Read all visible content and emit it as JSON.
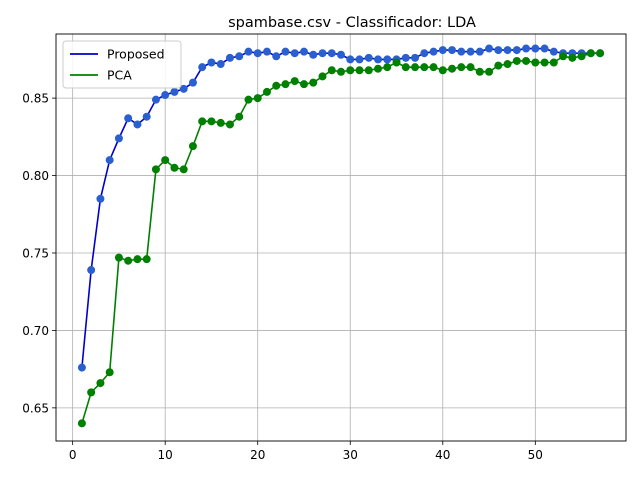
{
  "chart_data": {
    "type": "line",
    "title": "spambase.csv - Classificador: LDA",
    "xlabel": "",
    "ylabel": "",
    "xlim": [
      -1.8,
      59.8
    ],
    "ylim": [
      0.6286,
      0.8914
    ],
    "xticks": [
      0,
      10,
      20,
      30,
      40,
      50
    ],
    "yticks": [
      0.65,
      0.7,
      0.75,
      0.8,
      0.85
    ],
    "ytick_labels": [
      "0.65",
      "0.70",
      "0.75",
      "0.80",
      "0.85"
    ],
    "grid": true,
    "legend_position": "top-left",
    "x": [
      1,
      2,
      3,
      4,
      5,
      6,
      7,
      8,
      9,
      10,
      11,
      12,
      13,
      14,
      15,
      16,
      17,
      18,
      19,
      20,
      21,
      22,
      23,
      24,
      25,
      26,
      27,
      28,
      29,
      30,
      31,
      32,
      33,
      34,
      35,
      36,
      37,
      38,
      39,
      40,
      41,
      42,
      43,
      44,
      45,
      46,
      47,
      48,
      49,
      50,
      51,
      52,
      53,
      54,
      55,
      56,
      57
    ],
    "series": [
      {
        "name": "Proposed",
        "color": "#0000cc",
        "marker_color": "#2a5fd0",
        "values": [
          0.676,
          0.739,
          0.785,
          0.81,
          0.824,
          0.837,
          0.833,
          0.838,
          0.849,
          0.852,
          0.854,
          0.856,
          0.86,
          0.87,
          0.873,
          0.872,
          0.876,
          0.877,
          0.88,
          0.879,
          0.88,
          0.877,
          0.88,
          0.879,
          0.88,
          0.878,
          0.879,
          0.879,
          0.878,
          0.875,
          0.875,
          0.876,
          0.875,
          0.875,
          0.875,
          0.876,
          0.876,
          0.879,
          0.88,
          0.881,
          0.881,
          0.88,
          0.88,
          0.88,
          0.882,
          0.881,
          0.881,
          0.881,
          0.882,
          0.882,
          0.882,
          0.88,
          0.879,
          0.879,
          0.879,
          0.879,
          0.879
        ]
      },
      {
        "name": "PCA",
        "color": "#008000",
        "marker_color": "#008000",
        "values": [
          0.64,
          0.66,
          0.666,
          0.673,
          0.747,
          0.745,
          0.746,
          0.746,
          0.804,
          0.81,
          0.805,
          0.804,
          0.819,
          0.835,
          0.835,
          0.834,
          0.833,
          0.838,
          0.849,
          0.85,
          0.854,
          0.858,
          0.859,
          0.861,
          0.859,
          0.86,
          0.864,
          0.868,
          0.867,
          0.868,
          0.868,
          0.868,
          0.869,
          0.87,
          0.873,
          0.87,
          0.87,
          0.87,
          0.87,
          0.868,
          0.869,
          0.87,
          0.87,
          0.867,
          0.867,
          0.871,
          0.872,
          0.874,
          0.874,
          0.873,
          0.873,
          0.873,
          0.877,
          0.876,
          0.877,
          0.879,
          0.879
        ]
      }
    ]
  }
}
